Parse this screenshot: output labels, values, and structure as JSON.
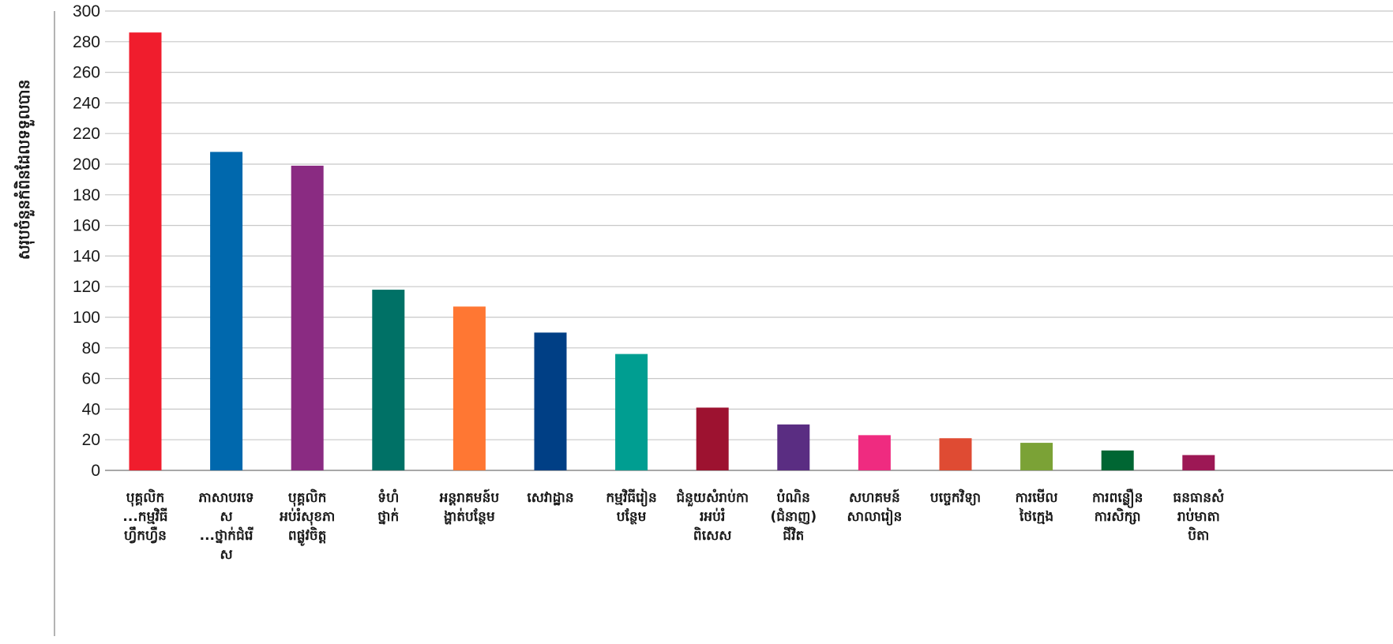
{
  "chart_data": {
    "type": "bar",
    "title": "",
    "xlabel": "",
    "ylabel": "សរុបចំនួនកំពិនដែលទទួលបាន",
    "ylim": [
      0,
      300
    ],
    "yticks": [
      0,
      20,
      40,
      60,
      80,
      100,
      120,
      140,
      160,
      180,
      200,
      220,
      240,
      260,
      280,
      300
    ],
    "grid": true,
    "categories": [
      [
        "បុគ្គលិក",
        "...កម្មវិធី",
        "ហ្វឹកហ្វឺន"
      ],
      [
        "ភាសាបរទេ",
        "ស",
        "...ថ្នាក់ជំរើ",
        "ស"
      ],
      [
        "បុគ្គលិក",
        "អប់រំសុខភា",
        "ពផ្លូវចិត្ត"
      ],
      [
        "ទំហំ",
        "ថ្នាក់"
      ],
      [
        "អន្តរាគមន៍ប",
        "ង្ហាត់បន្ថែម"
      ],
      [
        "សេវាដ្ឋាន"
      ],
      [
        "កម្មវិធីរៀន",
        "បន្ថែម"
      ],
      [
        "ជំនួយសំរាប់កា",
        "រអប់រំ",
        "ពិសេស"
      ],
      [
        "បំណិន",
        "(ជំនាញ)",
        "ជីវិត"
      ],
      [
        "សហគមន៍",
        "សាលារៀន"
      ],
      [
        "បច្ចេកវិទ្យា"
      ],
      [
        "ការមើល",
        "ថៃក្មេង"
      ],
      [
        "ការពន្លឿន",
        "ការសិក្សា"
      ],
      [
        "ធនធានសំ",
        "រាប់មាតា",
        "បិតា"
      ]
    ],
    "values": [
      286,
      208,
      199,
      118,
      107,
      90,
      76,
      41,
      30,
      23,
      21,
      18,
      13,
      10
    ],
    "colors": [
      "#f01d2d",
      "#0068ad",
      "#8a2b82",
      "#007166",
      "#ff7733",
      "#003f85",
      "#009e91",
      "#9d1230",
      "#5a2d82",
      "#ef2b80",
      "#df4b33",
      "#7ba236",
      "#006633",
      "#9d1855"
    ]
  }
}
